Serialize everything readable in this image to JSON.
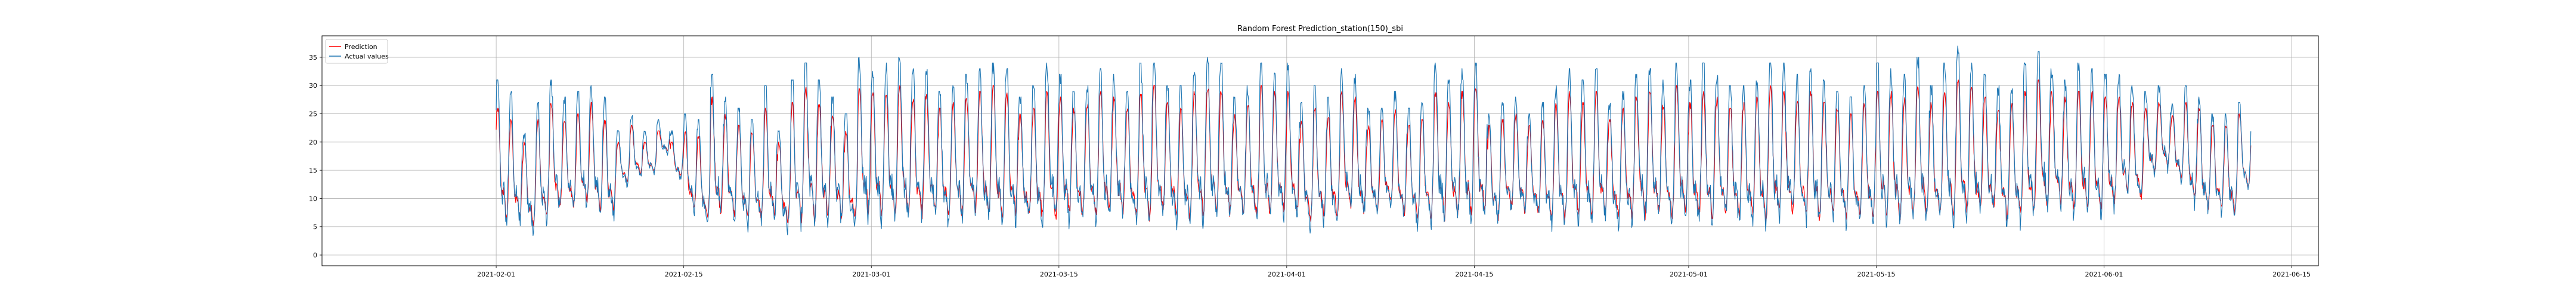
{
  "chart_data": {
    "type": "line",
    "title": "Random Forest Prediction_station(150)_sbi",
    "xlabel": "",
    "ylabel": "",
    "x_axis": "date",
    "x_range": [
      "2021-01-19",
      "2021-06-17"
    ],
    "x_ticks": [
      "2021-02-01",
      "2021-02-15",
      "2021-03-01",
      "2021-03-15",
      "2021-04-01",
      "2021-04-15",
      "2021-05-01",
      "2021-05-15",
      "2021-06-01",
      "2021-06-15"
    ],
    "ylim": [
      -1.9,
      38.8
    ],
    "y_ticks": [
      0,
      5,
      10,
      15,
      20,
      25,
      30,
      35
    ],
    "grid": true,
    "legend_position": "top-left",
    "data_range": [
      "2021-02-01",
      "2021-06-11"
    ],
    "series": [
      {
        "name": "Prediction",
        "color": "#ff0000"
      },
      {
        "name": "Actual values",
        "color": "#1f77b4"
      }
    ],
    "daily_profile": {
      "dates": [
        "2021-02-01",
        "2021-02-02",
        "2021-02-03",
        "2021-02-04",
        "2021-02-05",
        "2021-02-06",
        "2021-02-07",
        "2021-02-08",
        "2021-02-09",
        "2021-02-10",
        "2021-02-11",
        "2021-02-12",
        "2021-02-13",
        "2021-02-14",
        "2021-02-15",
        "2021-02-16",
        "2021-02-17",
        "2021-02-18",
        "2021-02-19",
        "2021-02-20",
        "2021-02-21",
        "2021-02-22",
        "2021-02-23",
        "2021-02-24",
        "2021-02-25",
        "2021-02-26",
        "2021-02-27",
        "2021-02-28",
        "2021-03-01",
        "2021-03-02",
        "2021-03-03",
        "2021-03-04",
        "2021-03-05",
        "2021-03-06",
        "2021-03-07",
        "2021-03-08",
        "2021-03-09",
        "2021-03-10",
        "2021-03-11",
        "2021-03-12",
        "2021-03-13",
        "2021-03-14",
        "2021-03-15",
        "2021-03-16",
        "2021-03-17",
        "2021-03-18",
        "2021-03-19",
        "2021-03-20",
        "2021-03-21",
        "2021-03-22",
        "2021-03-23",
        "2021-03-24",
        "2021-03-25",
        "2021-03-26",
        "2021-03-27",
        "2021-03-28",
        "2021-03-29",
        "2021-03-30",
        "2021-03-31",
        "2021-04-01",
        "2021-04-02",
        "2021-04-03",
        "2021-04-04",
        "2021-04-05",
        "2021-04-06",
        "2021-04-07",
        "2021-04-08",
        "2021-04-09",
        "2021-04-10",
        "2021-04-11",
        "2021-04-12",
        "2021-04-13",
        "2021-04-14",
        "2021-04-15",
        "2021-04-16",
        "2021-04-17",
        "2021-04-18",
        "2021-04-19",
        "2021-04-20",
        "2021-04-21",
        "2021-04-22",
        "2021-04-23",
        "2021-04-24",
        "2021-04-25",
        "2021-04-26",
        "2021-04-27",
        "2021-04-28",
        "2021-04-29",
        "2021-04-30",
        "2021-05-01",
        "2021-05-02",
        "2021-05-03",
        "2021-05-04",
        "2021-05-05",
        "2021-05-06",
        "2021-05-07",
        "2021-05-08",
        "2021-05-09",
        "2021-05-10",
        "2021-05-11",
        "2021-05-12",
        "2021-05-13",
        "2021-05-14",
        "2021-05-15",
        "2021-05-16",
        "2021-05-17",
        "2021-05-18",
        "2021-05-19",
        "2021-05-20",
        "2021-05-21",
        "2021-05-22",
        "2021-05-23",
        "2021-05-24",
        "2021-05-25",
        "2021-05-26",
        "2021-05-27",
        "2021-05-28",
        "2021-05-29",
        "2021-05-30",
        "2021-05-31",
        "2021-06-01",
        "2021-06-02",
        "2021-06-03",
        "2021-06-04",
        "2021-06-05",
        "2021-06-06",
        "2021-06-07",
        "2021-06-08",
        "2021-06-09",
        "2021-06-10",
        "2021-06-11"
      ],
      "actual_max": [
        31,
        29,
        22,
        27,
        31,
        28,
        29,
        30,
        28,
        22,
        25,
        22,
        24,
        22,
        25,
        24,
        32,
        28,
        26,
        24,
        30,
        22,
        31,
        34,
        31,
        28,
        25,
        35,
        33,
        34,
        35,
        33,
        34,
        29,
        30,
        32,
        33,
        34,
        33,
        28,
        30,
        34,
        32,
        29,
        30,
        33,
        32,
        29,
        34,
        34,
        30,
        30,
        33,
        35,
        34,
        28,
        30,
        34,
        33,
        34,
        27,
        30,
        28,
        33,
        32,
        26,
        26,
        29,
        26,
        27,
        34,
        31,
        33,
        34,
        25,
        27,
        28,
        25,
        27,
        30,
        33,
        31,
        33,
        27,
        29,
        32,
        33,
        31,
        34,
        31,
        34,
        32,
        30,
        30,
        32,
        34,
        34,
        32,
        33,
        31,
        29,
        28,
        30,
        34,
        33,
        32,
        35,
        30,
        34,
        37,
        34,
        32,
        30,
        30,
        34,
        36,
        33,
        31,
        34,
        33,
        32,
        32,
        30,
        29,
        30,
        27,
        30,
        28,
        25,
        25,
        27
      ],
      "actual_min": [
        2,
        3,
        2,
        3,
        4,
        5,
        6,
        4,
        3,
        11,
        12,
        13,
        17,
        12,
        5,
        2,
        3,
        2,
        2,
        3,
        2,
        2,
        2,
        2,
        2,
        3,
        2,
        3,
        2,
        2,
        2,
        3,
        2,
        2,
        3,
        4,
        2,
        2,
        2,
        3,
        2,
        2,
        2,
        2,
        3,
        2,
        3,
        2,
        2,
        3,
        2,
        2,
        2,
        2,
        3,
        4,
        2,
        2,
        2,
        3,
        2,
        2,
        2,
        4,
        3,
        4,
        6,
        3,
        2,
        2,
        2,
        3,
        2,
        2,
        3,
        5,
        4,
        4,
        2,
        2,
        2,
        2,
        3,
        2,
        2,
        3,
        2,
        2,
        2,
        2,
        2,
        3,
        2,
        2,
        2,
        2,
        3,
        2,
        2,
        3,
        2,
        2,
        3,
        2,
        2,
        3,
        2,
        3,
        2,
        2,
        3,
        4,
        2,
        2,
        3,
        4,
        5,
        3,
        4,
        3,
        5,
        8,
        6,
        12,
        13,
        11,
        6,
        4,
        5,
        4,
        9
      ],
      "prediction_max": [
        26,
        24,
        20,
        24,
        27,
        24,
        25,
        27,
        24,
        20,
        23,
        20,
        22,
        20,
        22,
        21,
        28,
        25,
        23,
        22,
        26,
        20,
        27,
        30,
        27,
        25,
        22,
        30,
        29,
        29,
        30,
        28,
        29,
        26,
        27,
        28,
        29,
        30,
        29,
        25,
        26,
        29,
        28,
        26,
        27,
        29,
        28,
        26,
        29,
        30,
        27,
        26,
        29,
        30,
        29,
        25,
        27,
        30,
        29,
        29,
        24,
        26,
        25,
        29,
        28,
        23,
        24,
        26,
        23,
        24,
        29,
        27,
        29,
        30,
        23,
        24,
        25,
        23,
        24,
        27,
        29,
        27,
        29,
        24,
        26,
        28,
        29,
        27,
        30,
        27,
        29,
        28,
        26,
        27,
        28,
        30,
        29,
        28,
        29,
        27,
        26,
        25,
        27,
        29,
        29,
        28,
        30,
        27,
        29,
        31,
        30,
        28,
        26,
        27,
        29,
        31,
        29,
        28,
        29,
        29,
        28,
        28,
        27,
        26,
        27,
        25,
        27,
        26,
        23,
        23,
        25
      ],
      "prediction_min": [
        4,
        4,
        3,
        4,
        5,
        6,
        7,
        5,
        5,
        12,
        13,
        14,
        18,
        13,
        6,
        4,
        4,
        4,
        4,
        4,
        4,
        4,
        3,
        3,
        4,
        4,
        4,
        4,
        4,
        3,
        4,
        4,
        4,
        4,
        4,
        5,
        4,
        3,
        4,
        4,
        4,
        3,
        4,
        4,
        4,
        4,
        4,
        4,
        3,
        4,
        4,
        3,
        4,
        4,
        4,
        5,
        4,
        3,
        4,
        4,
        4,
        4,
        4,
        5,
        4,
        5,
        7,
        4,
        4,
        4,
        3,
        4,
        4,
        4,
        4,
        6,
        5,
        5,
        4,
        3,
        4,
        4,
        4,
        4,
        4,
        4,
        4,
        3,
        4,
        4,
        3,
        4,
        4,
        4,
        3,
        4,
        4,
        4,
        3,
        4,
        4,
        4,
        4,
        4,
        3,
        4,
        4,
        4,
        4,
        4,
        4,
        5,
        4,
        4,
        4,
        5,
        6,
        5,
        5,
        5,
        6,
        9,
        7,
        13,
        14,
        12,
        7,
        5,
        6,
        5,
        10
      ]
    }
  }
}
